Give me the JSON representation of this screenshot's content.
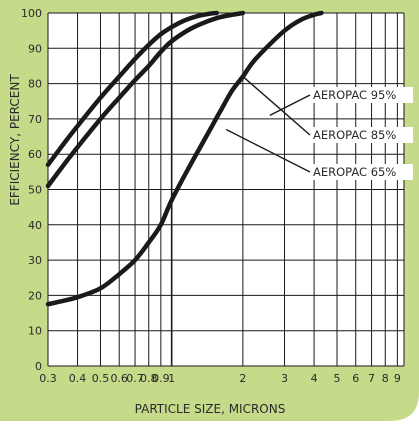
{
  "colors": {
    "panel": "#c5db8a",
    "grid": "#1a1a1a",
    "curve": "#1a1a1a",
    "text": "#2b2b2b"
  },
  "chart_data": {
    "type": "line",
    "xscale": "log",
    "xlabel": "PARTICLE SIZE, MICRONS",
    "ylabel": "EFFICIENCY, PERCENT",
    "xlim": [
      0.3,
      9.6
    ],
    "ylim": [
      0,
      100
    ],
    "xticks": [
      {
        "value": 0.3,
        "label": "0.3"
      },
      {
        "value": 0.4,
        "label": "0.4"
      },
      {
        "value": 0.5,
        "label": "0.5"
      },
      {
        "value": 0.6,
        "label": "0.6"
      },
      {
        "value": 0.7,
        "label": "0.7"
      },
      {
        "value": 0.8,
        "label": "0.8"
      },
      {
        "value": 0.9,
        "label": "0.9"
      },
      {
        "value": 1,
        "label": "1"
      },
      {
        "value": 2,
        "label": "2"
      },
      {
        "value": 3,
        "label": "3"
      },
      {
        "value": 4,
        "label": "4"
      },
      {
        "value": 5,
        "label": "5"
      },
      {
        "value": 6,
        "label": "6"
      },
      {
        "value": 7,
        "label": "7"
      },
      {
        "value": 8,
        "label": "8"
      },
      {
        "value": 9,
        "label": "9"
      }
    ],
    "yticks": [
      0,
      10,
      20,
      30,
      40,
      50,
      60,
      70,
      80,
      90,
      100
    ],
    "series": [
      {
        "name": "AEROPAC 95%",
        "x": [
          0.3,
          0.35,
          0.4,
          0.5,
          0.6,
          0.7,
          0.8,
          0.9,
          1.0,
          1.1,
          1.2,
          1.3,
          1.45,
          1.55
        ],
        "y": [
          57,
          63,
          68,
          76,
          82,
          87,
          91,
          94,
          96,
          97.5,
          98.5,
          99.2,
          99.8,
          100
        ],
        "label_point": [
          2.6,
          71
        ]
      },
      {
        "name": "AEROPAC 85%",
        "x": [
          0.3,
          0.35,
          0.4,
          0.5,
          0.6,
          0.7,
          0.8,
          0.9,
          1.0,
          1.2,
          1.4,
          1.6,
          1.8,
          2.0
        ],
        "y": [
          51,
          57,
          62,
          70,
          76,
          81,
          85,
          89,
          92,
          95.5,
          97.5,
          98.8,
          99.5,
          100
        ],
        "label_point": [
          2.0,
          82
        ]
      },
      {
        "name": "AEROPAC 65%",
        "x": [
          0.3,
          0.35,
          0.4,
          0.5,
          0.6,
          0.7,
          0.8,
          0.9,
          1.0,
          1.2,
          1.4,
          1.6,
          1.8,
          2.0,
          2.2,
          2.5,
          3.0,
          3.5,
          4.0,
          4.3
        ],
        "y": [
          17.5,
          18.5,
          19.5,
          22,
          26,
          30,
          35,
          40,
          47,
          57,
          65,
          72,
          78,
          82,
          86,
          90,
          95,
          98,
          99.5,
          100
        ],
        "label_point": [
          1.7,
          67
        ]
      }
    ]
  }
}
